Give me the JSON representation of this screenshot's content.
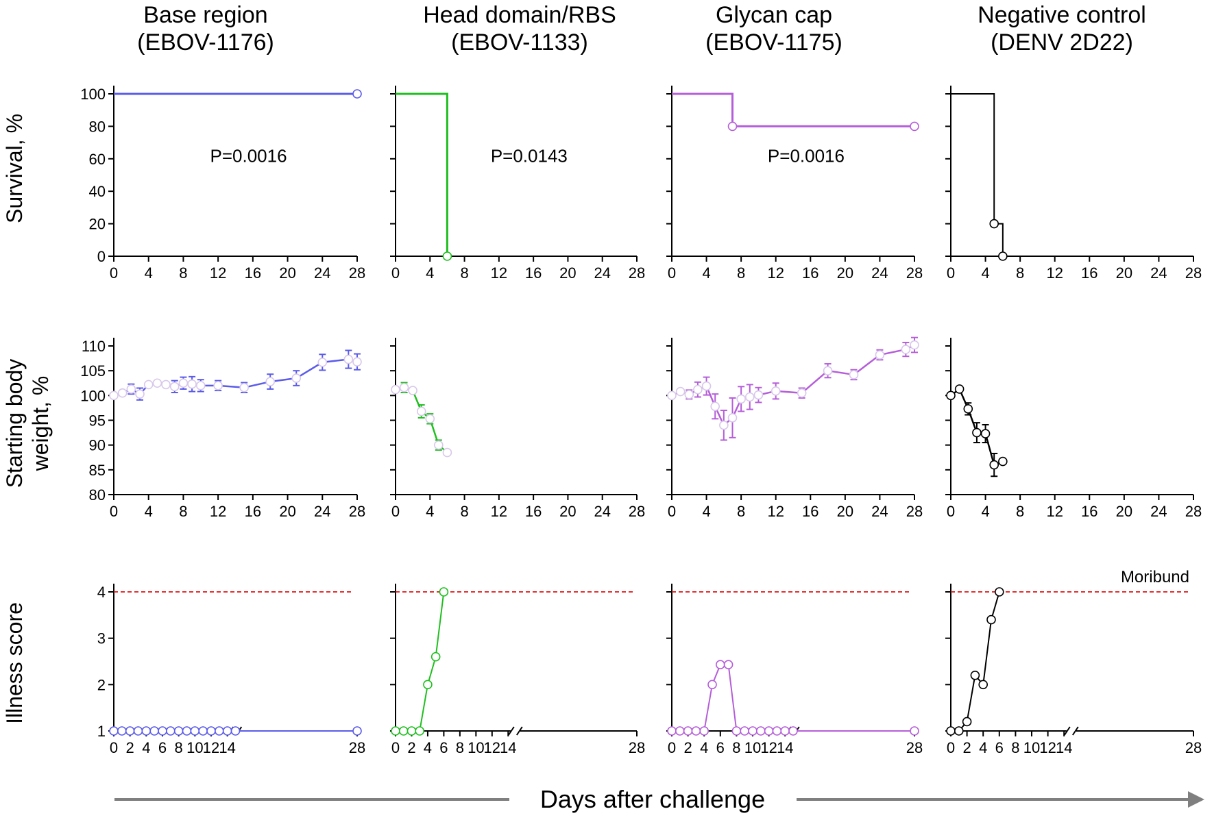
{
  "chart_data": {
    "type": "line",
    "columns": [
      {
        "title_line1": "Base region",
        "title_line2": "(EBOV-1176)",
        "color": "#5b5bea"
      },
      {
        "title_line1": "Head domain/RBS",
        "title_line2": "(EBOV-1133)",
        "color": "#1fbf1f"
      },
      {
        "title_line1": "Glycan cap",
        "title_line2": "(EBOV-1175)",
        "color": "#b55ed9"
      },
      {
        "title_line1": "Negative control",
        "title_line2": "(DENV 2D22)",
        "color": "#000000"
      }
    ],
    "rows": [
      {
        "ylabel_line1": "Survival, %",
        "ylabel_line2": ""
      },
      {
        "ylabel_line1": "Starting body",
        "ylabel_line2": "weight, %"
      },
      {
        "ylabel_line1": "Illness score",
        "ylabel_line2": ""
      }
    ],
    "xlabel": "Days after challenge",
    "survival": {
      "xlim": [
        0,
        28
      ],
      "ylim": [
        0,
        100
      ],
      "xticks": [
        "0",
        "4",
        "8",
        "12",
        "16",
        "20",
        "24",
        "28"
      ],
      "yticks": [
        "0",
        "20",
        "40",
        "60",
        "80",
        "100"
      ],
      "series": [
        {
          "steps": [
            [
              0,
              100
            ],
            [
              28,
              100
            ]
          ],
          "markers": [
            [
              28,
              100
            ]
          ],
          "pvalue": "P=0.0016"
        },
        {
          "steps": [
            [
              0,
              100
            ],
            [
              6,
              100
            ],
            [
              6,
              0
            ]
          ],
          "markers": [
            [
              6,
              0
            ]
          ],
          "pvalue": "P=0.0143"
        },
        {
          "steps": [
            [
              0,
              100
            ],
            [
              7,
              100
            ],
            [
              7,
              80
            ],
            [
              28,
              80
            ]
          ],
          "markers": [
            [
              7,
              80
            ],
            [
              28,
              80
            ]
          ],
          "pvalue": "P=0.0016"
        },
        {
          "steps": [
            [
              0,
              100
            ],
            [
              5,
              100
            ],
            [
              5,
              20
            ],
            [
              6,
              20
            ],
            [
              6,
              0
            ]
          ],
          "markers": [
            [
              5,
              20
            ],
            [
              6,
              0
            ]
          ],
          "pvalue": ""
        }
      ]
    },
    "weight": {
      "xlim": [
        0,
        28
      ],
      "ylim": [
        80,
        110
      ],
      "xticks": [
        "0",
        "4",
        "8",
        "12",
        "16",
        "20",
        "24",
        "28"
      ],
      "yticks": [
        "80",
        "85",
        "90",
        "95",
        "100",
        "105",
        "110"
      ],
      "series": [
        {
          "x": [
            0,
            1,
            2,
            3,
            4,
            5,
            6,
            7,
            8,
            9,
            10,
            12,
            15,
            18,
            21,
            24,
            27,
            28
          ],
          "y": [
            100,
            100.5,
            101.3,
            100.3,
            102.2,
            102.5,
            102.2,
            101.8,
            102.5,
            102.3,
            102,
            102,
            101.6,
            102.8,
            103.5,
            106.7,
            107.3,
            106.8
          ],
          "err": [
            0,
            0,
            1,
            1.2,
            0,
            0,
            0,
            1.2,
            1.2,
            1.5,
            1.2,
            1,
            1,
            1.5,
            1.5,
            1.6,
            1.8,
            1.6
          ]
        },
        {
          "x": [
            0,
            1,
            2,
            3,
            4,
            5,
            6
          ],
          "y": [
            101.2,
            101.6,
            101,
            96.8,
            95.3,
            90,
            88.5
          ],
          "err": [
            0,
            1,
            0,
            1.3,
            1,
            1,
            0
          ]
        },
        {
          "x": [
            0,
            1,
            2,
            3,
            4,
            5,
            6,
            7,
            8,
            9,
            10,
            12,
            15,
            18,
            21,
            24,
            27,
            28
          ],
          "y": [
            100,
            100.8,
            100.2,
            101.2,
            101.9,
            97.8,
            94,
            95.5,
            99.3,
            99.7,
            100.1,
            100.9,
            100.5,
            105,
            104.2,
            108.2,
            109.3,
            110.2
          ],
          "err": [
            0,
            0,
            0.9,
            1.5,
            1.8,
            2.5,
            3,
            4,
            2.5,
            2.5,
            1.5,
            1.6,
            1,
            1.4,
            1,
            1,
            1.4,
            1.5
          ]
        },
        {
          "x": [
            0,
            1,
            2,
            3,
            4,
            5,
            6
          ],
          "y": [
            100,
            101.3,
            97.3,
            92.5,
            92.3,
            86,
            86.7
          ],
          "err": [
            0,
            0,
            1.2,
            2,
            1.8,
            2.3,
            0
          ]
        }
      ]
    },
    "illness": {
      "ylim": [
        1,
        4
      ],
      "xticks": [
        "0",
        "2",
        "4",
        "6",
        "8",
        "10",
        "12",
        "14",
        "28"
      ],
      "yticks": [
        "1",
        "2",
        "3",
        "4"
      ],
      "moribund_level": 4,
      "moribund_label": "Moribund",
      "series": [
        {
          "x": [
            0,
            1,
            2,
            3,
            4,
            5,
            6,
            7,
            8,
            9,
            10,
            11,
            12,
            13,
            14,
            15,
            28
          ],
          "y": [
            1,
            1,
            1,
            1,
            1,
            1,
            1,
            1,
            1,
            1,
            1,
            1,
            1,
            1,
            1,
            1,
            1
          ]
        },
        {
          "x": [
            0,
            1,
            2,
            3,
            4,
            5,
            6
          ],
          "y": [
            1,
            1,
            1,
            1,
            2,
            2.6,
            4
          ]
        },
        {
          "x": [
            0,
            1,
            2,
            3,
            4,
            5,
            6,
            7,
            8,
            9,
            10,
            11,
            12,
            13,
            14,
            15,
            28
          ],
          "y": [
            1,
            1,
            1,
            1,
            1,
            2,
            2.43,
            2.43,
            1,
            1,
            1,
            1,
            1,
            1,
            1,
            1,
            1
          ]
        },
        {
          "x": [
            0,
            1,
            2,
            3,
            4,
            5,
            6
          ],
          "y": [
            1,
            1,
            1.2,
            2.2,
            2,
            3.4,
            4
          ]
        }
      ]
    }
  }
}
